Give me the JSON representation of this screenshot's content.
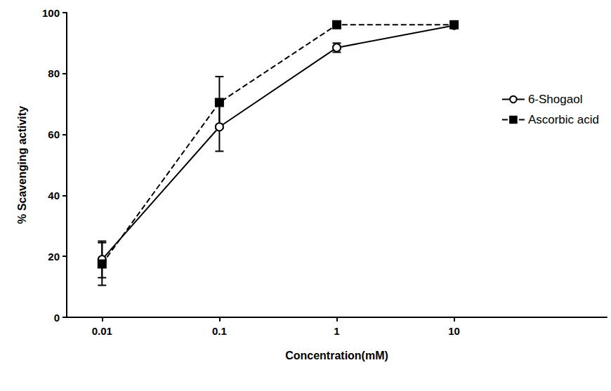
{
  "chart_data": {
    "type": "line",
    "xlabel": "Concentration(mM)",
    "ylabel": "% Scavenging activity",
    "log": "x",
    "xlim": [
      0.005,
      200
    ],
    "xticks": [
      0.01,
      0.1,
      1,
      10
    ],
    "ylim": [
      0,
      100
    ],
    "yticks": [
      0,
      20,
      40,
      60,
      80,
      100
    ],
    "grid": false,
    "legend": "right",
    "series": [
      {
        "name": "6-Shogaol",
        "color": "#000000",
        "marker": "open_circle",
        "line_style": "solid",
        "x": [
          0.01,
          0.1,
          1,
          10
        ],
        "values": [
          19,
          62.5,
          88.5,
          95.8
        ],
        "errors": [
          6,
          8,
          1.5,
          0.5
        ]
      },
      {
        "name": "Ascorbic acid",
        "color": "#000000",
        "marker": "square",
        "line_style": "dashed",
        "x": [
          0.01,
          0.1,
          1,
          10
        ],
        "values": [
          17.5,
          70.5,
          96,
          96
        ],
        "errors": [
          7,
          8.5,
          0.5,
          0.5
        ]
      }
    ]
  }
}
